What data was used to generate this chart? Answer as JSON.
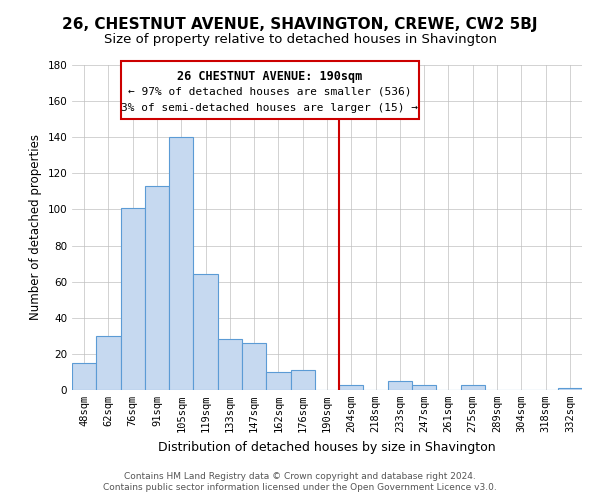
{
  "title": "26, CHESTNUT AVENUE, SHAVINGTON, CREWE, CW2 5BJ",
  "subtitle": "Size of property relative to detached houses in Shavington",
  "xlabel": "Distribution of detached houses by size in Shavington",
  "ylabel": "Number of detached properties",
  "bar_labels": [
    "48sqm",
    "62sqm",
    "76sqm",
    "91sqm",
    "105sqm",
    "119sqm",
    "133sqm",
    "147sqm",
    "162sqm",
    "176sqm",
    "190sqm",
    "204sqm",
    "218sqm",
    "233sqm",
    "247sqm",
    "261sqm",
    "275sqm",
    "289sqm",
    "304sqm",
    "318sqm",
    "332sqm"
  ],
  "bar_heights": [
    15,
    30,
    101,
    113,
    140,
    64,
    28,
    26,
    10,
    11,
    0,
    3,
    0,
    5,
    3,
    0,
    3,
    0,
    0,
    0,
    1
  ],
  "bar_color": "#c6d9f0",
  "bar_edge_color": "#5b9bd5",
  "vline_x": 10.5,
  "vline_color": "#cc0000",
  "annotation_title": "26 CHESTNUT AVENUE: 190sqm",
  "annotation_line1": "← 97% of detached houses are smaller (536)",
  "annotation_line2": "3% of semi-detached houses are larger (15) →",
  "annotation_box_color": "#ffffff",
  "annotation_box_edge": "#cc0000",
  "ylim": [
    0,
    180
  ],
  "yticks": [
    0,
    20,
    40,
    60,
    80,
    100,
    120,
    140,
    160,
    180
  ],
  "footer1": "Contains HM Land Registry data © Crown copyright and database right 2024.",
  "footer2": "Contains public sector information licensed under the Open Government Licence v3.0.",
  "bg_color": "#ffffff",
  "grid_color": "#c0c0c0",
  "title_fontsize": 11,
  "subtitle_fontsize": 9.5,
  "xlabel_fontsize": 9,
  "ylabel_fontsize": 8.5,
  "tick_fontsize": 7.5,
  "footer_fontsize": 6.5
}
